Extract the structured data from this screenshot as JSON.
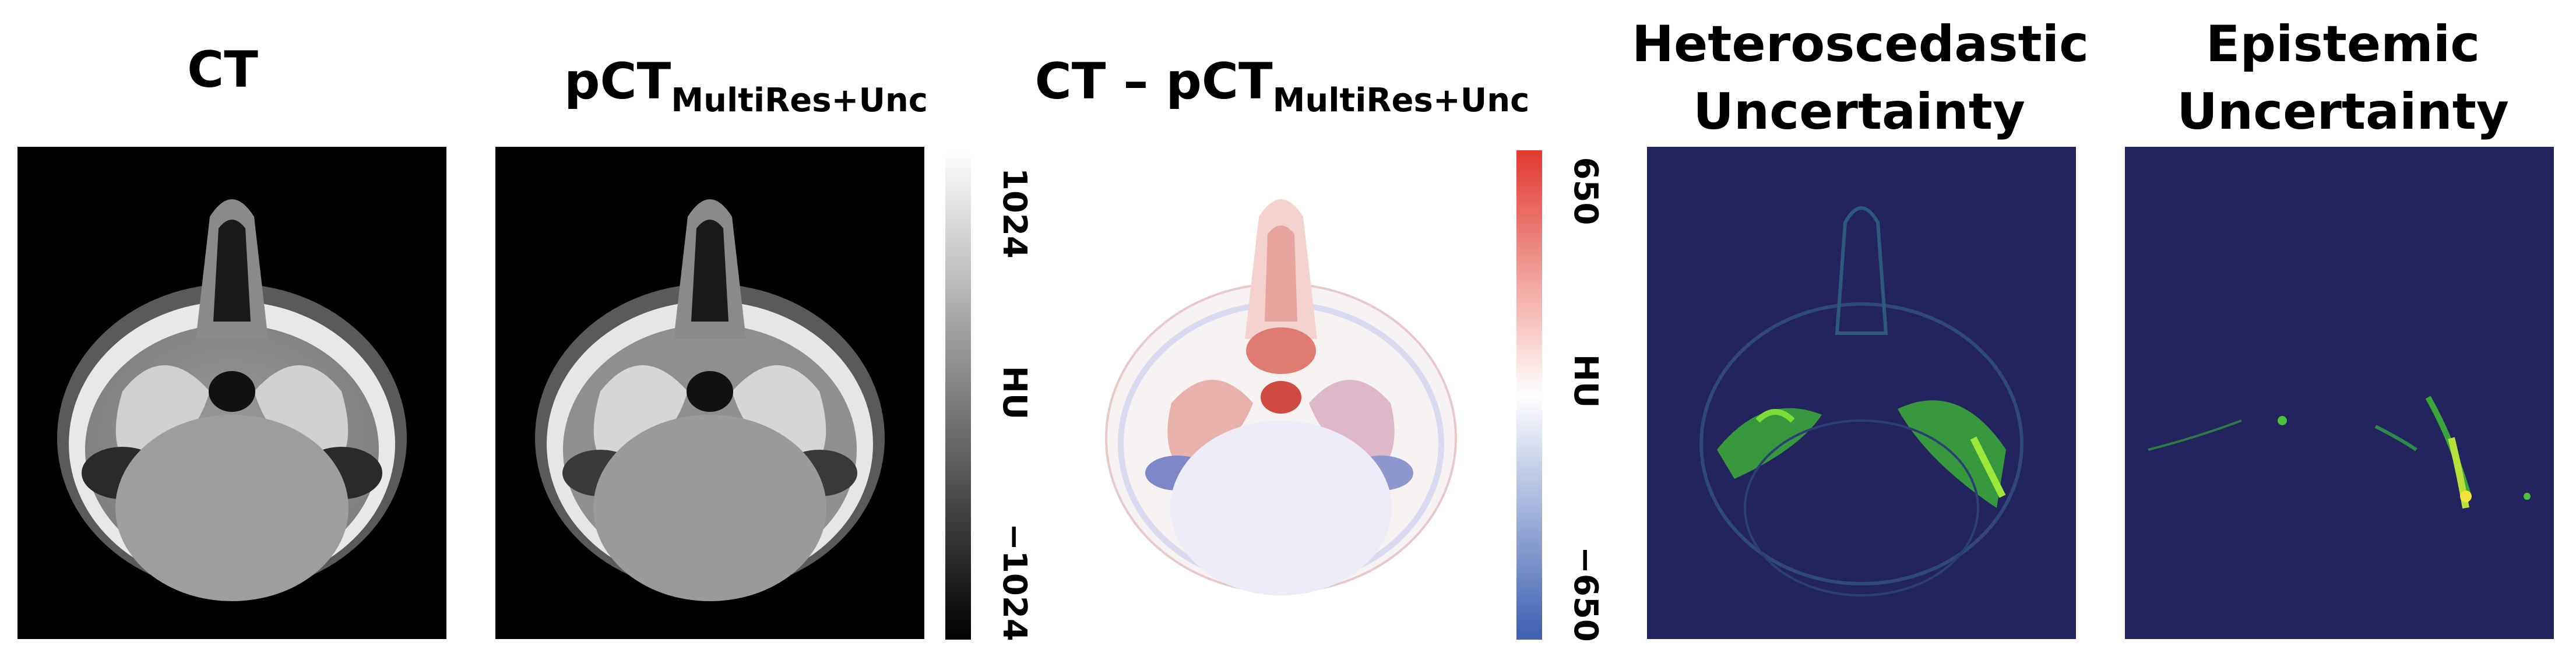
{
  "panels": [
    {
      "id": "ct",
      "title": "CT"
    },
    {
      "id": "pct",
      "title_main": "pCT",
      "title_sub": "MultiRes+Unc"
    },
    {
      "id": "diff",
      "title_main": "CT – pCT",
      "title_sub": "MultiRes+Unc"
    },
    {
      "id": "hetero",
      "title_line1": "Heteroscedastic",
      "title_line2": "Uncertainty"
    },
    {
      "id": "epist",
      "title_line1": "Epistemic",
      "title_line2": "Uncertainty"
    }
  ],
  "colorbars": {
    "gray": {
      "max": "1024",
      "unit": "HU",
      "min": "−1024",
      "colors": [
        "#ffffff",
        "#000000"
      ]
    },
    "diverging": {
      "max": "650",
      "unit": "HU",
      "min": "−650",
      "colors": [
        "#e03a2e",
        "#ffffff",
        "#3d5fb0"
      ]
    }
  },
  "colors": {
    "uncertainty_bg": "#23235e",
    "uncertainty_hot": "#5fd82a",
    "uncertainty_peak": "#f5e23a"
  }
}
